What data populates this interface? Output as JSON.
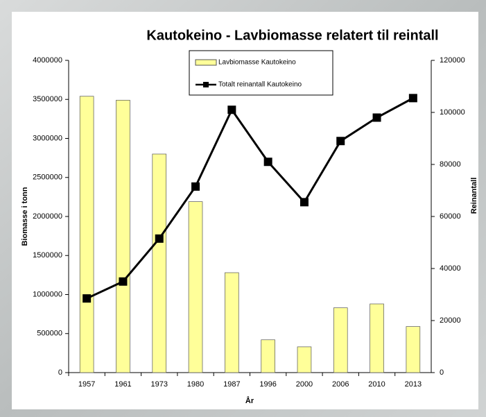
{
  "chart_data": {
    "type": "combo",
    "title": "Kautokeino - Lavbiomasse relatert til reintall",
    "x_label": "År",
    "y_label": "Biomasse i tonn",
    "y2_label": "Reinantall",
    "categories": [
      "1957",
      "1961",
      "1973",
      "1980",
      "1987",
      "1996",
      "2000",
      "2006",
      "2010",
      "2013"
    ],
    "series": [
      {
        "name": "Lavbiomasse Kautokeino",
        "type": "bar",
        "color": "#ffff99",
        "values": [
          3540000,
          3490000,
          2800000,
          2190000,
          1280000,
          420000,
          330000,
          830000,
          880000,
          590000
        ]
      },
      {
        "name": "Totalt reinantall Kautokeino",
        "type": "line",
        "axis": "y2",
        "color": "#000000",
        "values": [
          28500,
          35000,
          51500,
          71500,
          101000,
          81000,
          65500,
          89000,
          98000,
          105500
        ]
      }
    ],
    "ylim": [
      0,
      4000000
    ],
    "yticks": [
      0,
      500000,
      1000000,
      1500000,
      2000000,
      2500000,
      3000000,
      3500000,
      4000000
    ],
    "y2lim": [
      0,
      120000
    ],
    "y2ticks": [
      0,
      20000,
      40000,
      60000,
      80000,
      100000,
      120000
    ],
    "grid": false
  }
}
